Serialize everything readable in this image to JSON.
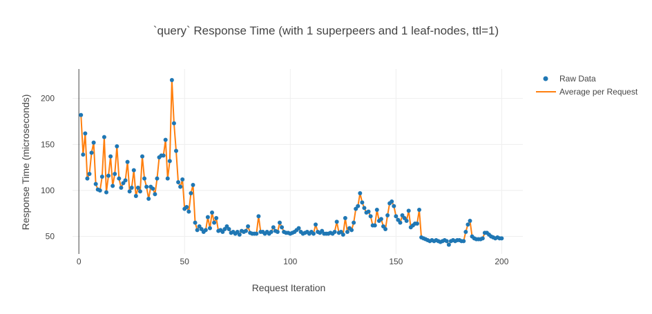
{
  "chart_data": {
    "type": "line",
    "title": "`query` Response Time (with 1 superpeers and 1 leaf-nodes, ttl=1)",
    "xlabel": "Request Iteration",
    "ylabel": "Response Time (microseconds)",
    "xlim": [
      -3,
      210
    ],
    "ylim": [
      31,
      232
    ],
    "xticks": [
      0,
      50,
      100,
      150,
      200
    ],
    "yticks": [
      50,
      100,
      150,
      200
    ],
    "grid": true,
    "legend_position": "top-right",
    "series": [
      {
        "name": "Raw Data",
        "mode": "markers",
        "color": "#1f77b4",
        "x": [
          1,
          2,
          3,
          4,
          5,
          6,
          7,
          8,
          9,
          10,
          11,
          12,
          13,
          14,
          15,
          16,
          17,
          18,
          19,
          20,
          21,
          22,
          23,
          24,
          25,
          26,
          27,
          28,
          29,
          30,
          31,
          32,
          33,
          34,
          35,
          36,
          37,
          38,
          39,
          40,
          41,
          42,
          43,
          44,
          45,
          46,
          47,
          48,
          49,
          50,
          51,
          52,
          53,
          54,
          55,
          56,
          57,
          58,
          59,
          60,
          61,
          62,
          63,
          64,
          65,
          66,
          67,
          68,
          69,
          70,
          71,
          72,
          73,
          74,
          75,
          76,
          77,
          78,
          79,
          80,
          81,
          82,
          83,
          84,
          85,
          86,
          87,
          88,
          89,
          90,
          91,
          92,
          93,
          94,
          95,
          96,
          97,
          98,
          99,
          100,
          101,
          102,
          103,
          104,
          105,
          106,
          107,
          108,
          109,
          110,
          111,
          112,
          113,
          114,
          115,
          116,
          117,
          118,
          119,
          120,
          121,
          122,
          123,
          124,
          125,
          126,
          127,
          128,
          129,
          130,
          131,
          132,
          133,
          134,
          135,
          136,
          137,
          138,
          139,
          140,
          141,
          142,
          143,
          144,
          145,
          146,
          147,
          148,
          149,
          150,
          151,
          152,
          153,
          154,
          155,
          156,
          157,
          158,
          159,
          160,
          161,
          162,
          163,
          164,
          165,
          166,
          167,
          168,
          169,
          170,
          171,
          172,
          173,
          174,
          175,
          176,
          177,
          178,
          179,
          180,
          181,
          182,
          183,
          184,
          185,
          186,
          187,
          188,
          189,
          190,
          191,
          192,
          193,
          194,
          195,
          196,
          197,
          198,
          199,
          200
        ],
        "y": [
          182,
          139,
          162,
          113,
          118,
          141,
          152,
          107,
          101,
          100,
          115,
          158,
          98,
          116,
          137,
          105,
          118,
          148,
          113,
          103,
          108,
          111,
          131,
          99,
          103,
          122,
          94,
          103,
          99,
          137,
          113,
          104,
          91,
          104,
          102,
          96,
          113,
          136,
          138,
          138,
          155,
          113,
          132,
          220,
          173,
          143,
          109,
          104,
          112,
          80,
          82,
          77,
          97,
          106,
          65,
          57,
          61,
          58,
          55,
          57,
          71,
          59,
          76,
          65,
          70,
          56,
          57,
          55,
          58,
          61,
          58,
          54,
          55,
          53,
          55,
          52,
          56,
          55,
          56,
          61,
          54,
          53,
          53,
          53,
          72,
          55,
          55,
          53,
          55,
          53,
          55,
          60,
          56,
          55,
          65,
          60,
          55,
          54,
          54,
          53,
          54,
          55,
          57,
          59,
          55,
          53,
          54,
          55,
          53,
          55,
          53,
          63,
          55,
          54,
          56,
          53,
          53,
          53,
          54,
          53,
          55,
          66,
          54,
          55,
          52,
          70,
          55,
          59,
          57,
          65,
          80,
          83,
          97,
          87,
          81,
          76,
          77,
          72,
          62,
          62,
          79,
          67,
          69,
          61,
          58,
          73,
          86,
          88,
          83,
          72,
          68,
          65,
          73,
          70,
          67,
          78,
          60,
          62,
          64,
          64,
          79,
          49,
          48,
          47,
          46,
          45,
          46,
          45,
          46,
          45,
          44,
          45,
          46,
          45,
          41,
          45,
          46,
          45,
          46,
          46,
          45,
          45,
          55,
          63,
          67,
          50,
          48,
          47,
          47,
          47,
          48,
          54,
          54,
          52,
          50,
          49,
          48,
          49,
          48,
          48
        ]
      },
      {
        "name": "Average per Request",
        "mode": "lines",
        "color": "#ff7f0e"
      }
    ]
  }
}
